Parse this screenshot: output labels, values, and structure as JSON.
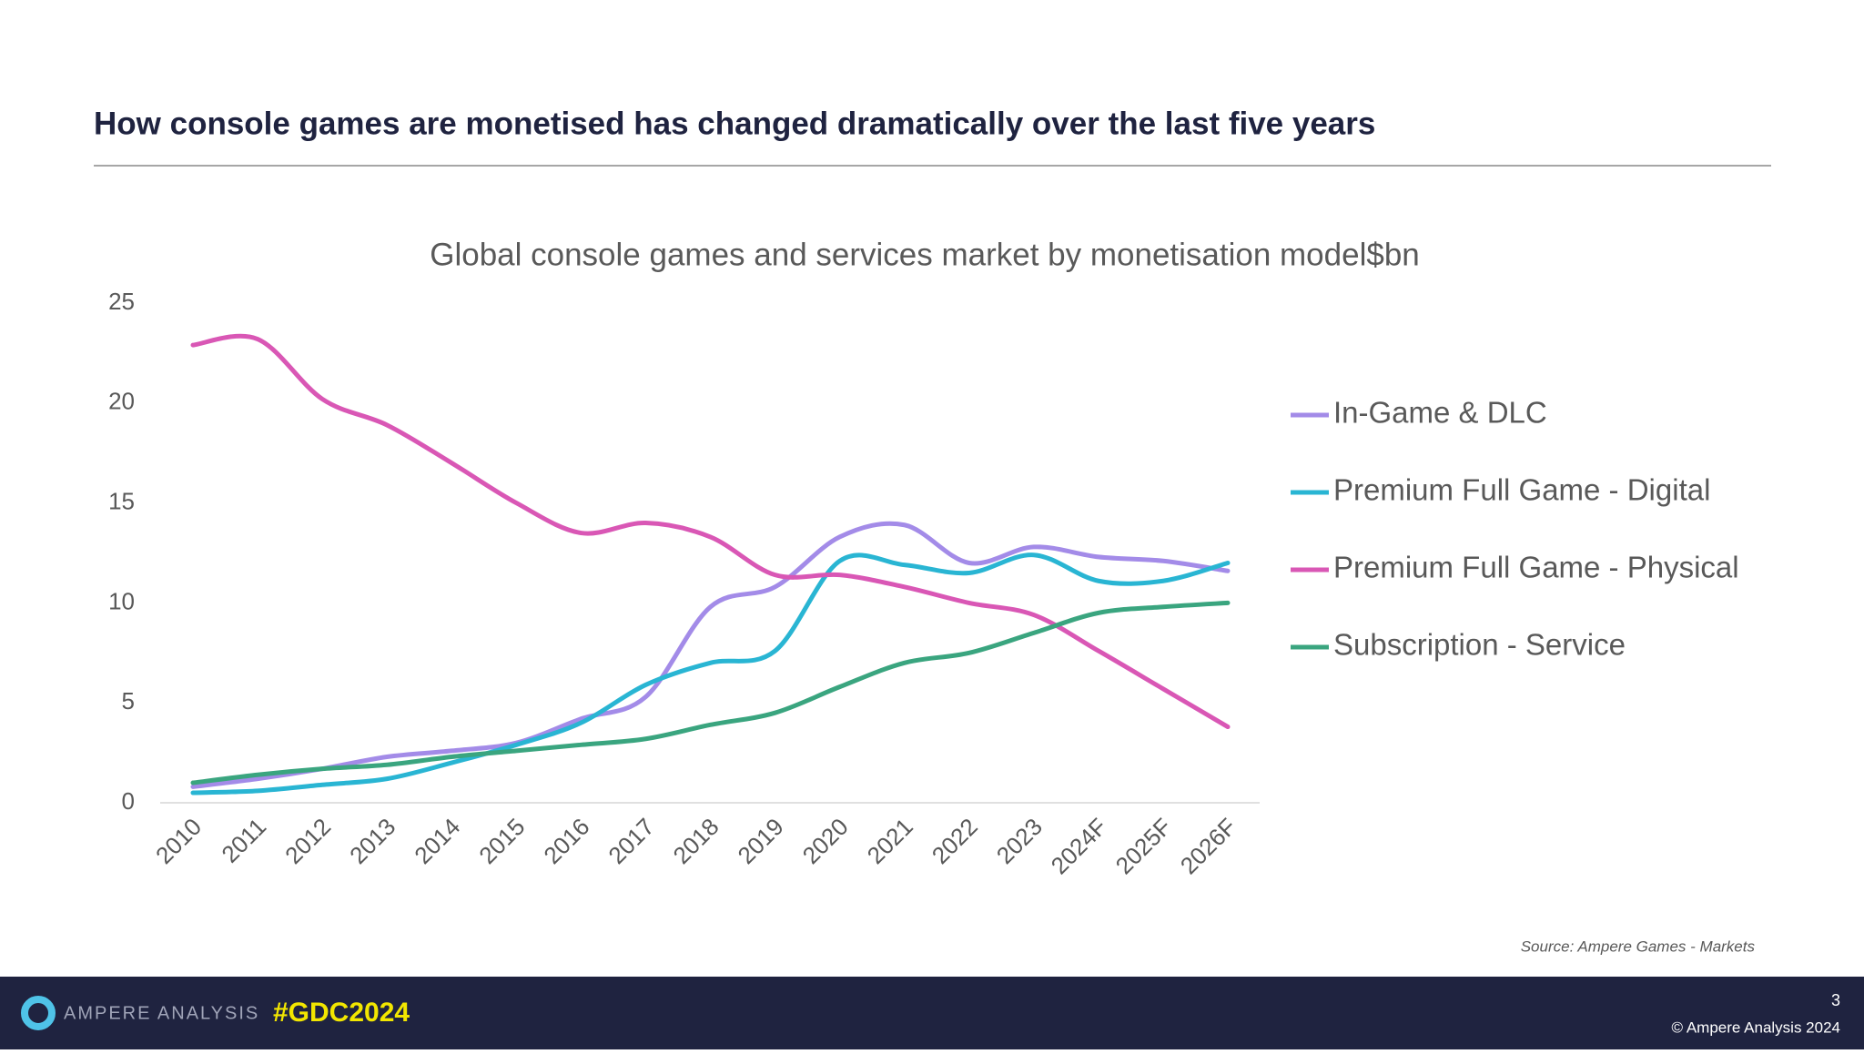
{
  "header": {
    "title": "How console games are monetised has changed dramatically over the last five years"
  },
  "chart_data": {
    "type": "line",
    "title": "Global console games and services market by monetisation model$bn",
    "categories": [
      "2010",
      "2011",
      "2012",
      "2013",
      "2014",
      "2015",
      "2016",
      "2017",
      "2018",
      "2019",
      "2020",
      "2021",
      "2022",
      "2023",
      "2024F",
      "2025F",
      "2026F"
    ],
    "series": [
      {
        "name": "In-Game & DLC",
        "color": "#a38be8",
        "values": [
          0.8,
          1.2,
          1.7,
          2.3,
          2.6,
          3.0,
          4.2,
          5.3,
          9.8,
          10.8,
          13.3,
          13.9,
          12.0,
          12.8,
          12.3,
          12.1,
          11.6
        ]
      },
      {
        "name": "Premium Full Game - Digital",
        "color": "#29b5d3",
        "values": [
          0.5,
          0.6,
          0.9,
          1.2,
          2.0,
          2.9,
          4.0,
          5.9,
          7.0,
          7.6,
          12.1,
          11.9,
          11.5,
          12.4,
          11.1,
          11.1,
          12.0
        ]
      },
      {
        "name": "Premium Full Game - Physical",
        "color": "#d957b5",
        "values": [
          22.9,
          23.2,
          20.2,
          18.9,
          17.0,
          15.0,
          13.5,
          14.0,
          13.3,
          11.4,
          11.4,
          10.8,
          10.0,
          9.4,
          7.6,
          5.7,
          3.8
        ]
      },
      {
        "name": "Subscription - Service",
        "color": "#3aa57f",
        "values": [
          1.0,
          1.4,
          1.7,
          1.9,
          2.3,
          2.6,
          2.9,
          3.2,
          3.9,
          4.5,
          5.8,
          7.0,
          7.5,
          8.5,
          9.5,
          9.8,
          10.0
        ]
      }
    ],
    "ylim": [
      0,
      25
    ],
    "yticks": [
      0,
      5,
      10,
      15,
      20,
      25
    ],
    "grid": false,
    "legend": "right"
  },
  "source": "Source: Ampere Games  - Markets",
  "footer": {
    "logo": "AMPERE ANALYSIS",
    "tag": "#GDC2024",
    "page": "3",
    "copyright": "© Ampere Analysis 2024"
  }
}
